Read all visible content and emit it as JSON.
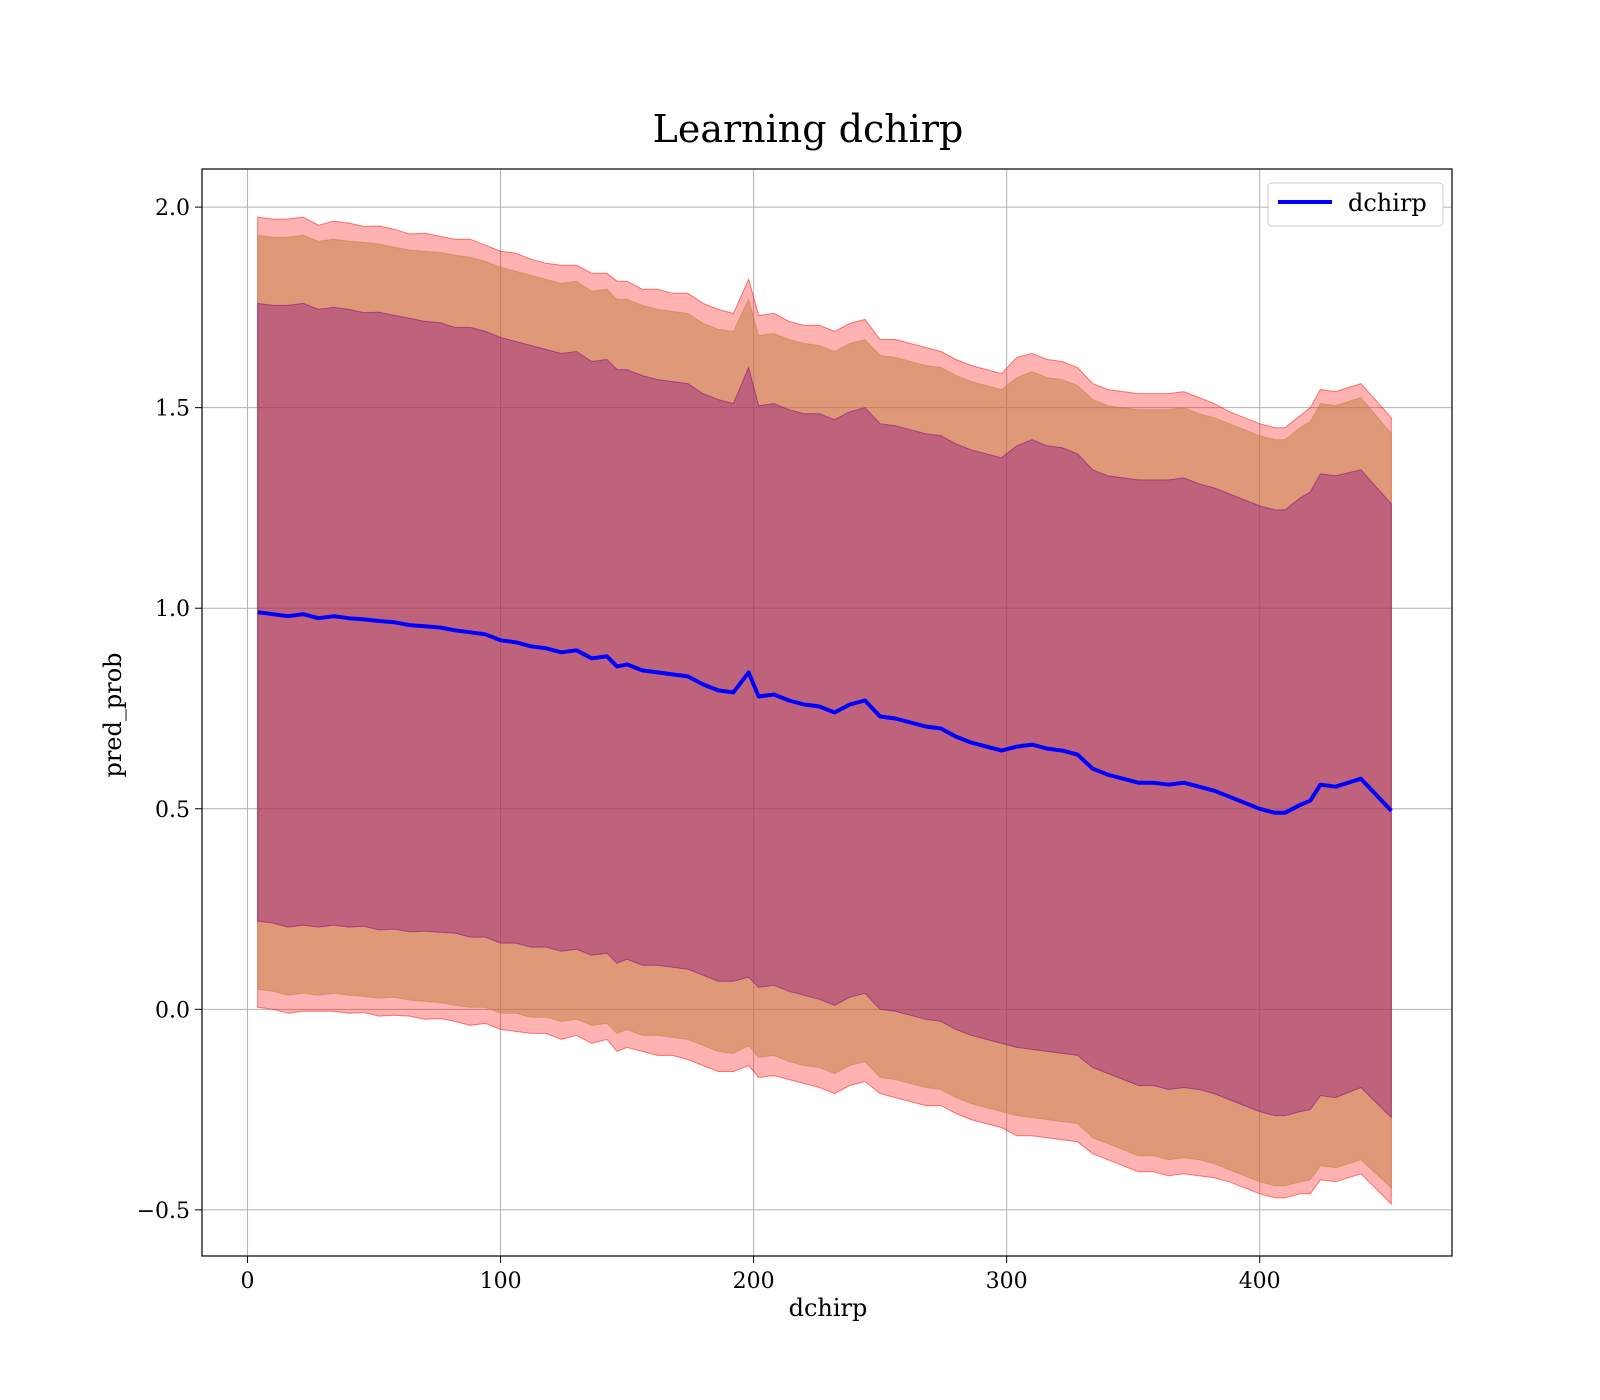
{
  "chart_data": {
    "type": "line",
    "title": "Learning dchirp",
    "xlabel": "dchirp",
    "ylabel": "pred_prob",
    "xlim": [
      -18,
      476
    ],
    "ylim": [
      -0.615,
      2.095
    ],
    "xticks": [
      0,
      100,
      200,
      300,
      400
    ],
    "xtick_labels": [
      "0",
      "100",
      "200",
      "300",
      "400"
    ],
    "yticks": [
      -0.5,
      0.0,
      0.5,
      1.0,
      1.5,
      2.0
    ],
    "ytick_labels": [
      "−0.5",
      "0.0",
      "0.5",
      "1.0",
      "1.5",
      "2.0"
    ],
    "grid": true,
    "legend_position": "top-right",
    "series": [
      {
        "name": "dchirp",
        "color": "#0000ff",
        "x": [
          4,
          10,
          16,
          22,
          28,
          34,
          40,
          46,
          52,
          58,
          64,
          70,
          76,
          82,
          88,
          94,
          100,
          106,
          112,
          118,
          124,
          130,
          136,
          142,
          146,
          150,
          156,
          162,
          168,
          174,
          180,
          186,
          192,
          198,
          202,
          208,
          214,
          220,
          226,
          232,
          238,
          244,
          250,
          256,
          262,
          268,
          274,
          280,
          286,
          292,
          298,
          304,
          310,
          316,
          322,
          328,
          334,
          340,
          346,
          352,
          358,
          364,
          370,
          376,
          382,
          388,
          394,
          400,
          406,
          410,
          416,
          420,
          424,
          430,
          440,
          452
        ],
        "y": [
          0.99,
          0.985,
          0.98,
          0.985,
          0.975,
          0.98,
          0.975,
          0.972,
          0.968,
          0.965,
          0.958,
          0.955,
          0.952,
          0.945,
          0.94,
          0.935,
          0.92,
          0.915,
          0.905,
          0.9,
          0.89,
          0.895,
          0.875,
          0.88,
          0.855,
          0.86,
          0.845,
          0.84,
          0.835,
          0.83,
          0.81,
          0.795,
          0.79,
          0.84,
          0.78,
          0.785,
          0.77,
          0.76,
          0.755,
          0.74,
          0.76,
          0.77,
          0.73,
          0.725,
          0.715,
          0.705,
          0.7,
          0.68,
          0.665,
          0.655,
          0.645,
          0.655,
          0.66,
          0.65,
          0.645,
          0.635,
          0.6,
          0.585,
          0.575,
          0.565,
          0.565,
          0.56,
          0.565,
          0.555,
          0.545,
          0.53,
          0.515,
          0.5,
          0.49,
          0.49,
          0.51,
          0.52,
          0.56,
          0.555,
          0.575,
          0.495
        ]
      }
    ],
    "bands": [
      {
        "fill": "#ff0000",
        "opacity": 0.3,
        "width": [
          0.985,
          0.985,
          0.99,
          0.99,
          0.98,
          0.985,
          0.985,
          0.98,
          0.985,
          0.98,
          0.975,
          0.98,
          0.975,
          0.975,
          0.98,
          0.97,
          0.97,
          0.97,
          0.965,
          0.96,
          0.965,
          0.96,
          0.96,
          0.955,
          0.96,
          0.955,
          0.95,
          0.955,
          0.95,
          0.955,
          0.95,
          0.95,
          0.945,
          0.98,
          0.95,
          0.95,
          0.945,
          0.945,
          0.95,
          0.95,
          0.95,
          0.95,
          0.94,
          0.945,
          0.945,
          0.945,
          0.94,
          0.94,
          0.94,
          0.94,
          0.94,
          0.97,
          0.975,
          0.97,
          0.97,
          0.965,
          0.96,
          0.96,
          0.965,
          0.97,
          0.97,
          0.975,
          0.975,
          0.97,
          0.965,
          0.96,
          0.96,
          0.96,
          0.96,
          0.96,
          0.97,
          0.98,
          0.985,
          0.985,
          0.985,
          0.98
        ]
      },
      {
        "fill": "#bf8040",
        "opacity": 0.5,
        "width": [
          0.94,
          0.94,
          0.945,
          0.945,
          0.94,
          0.94,
          0.94,
          0.94,
          0.94,
          0.935,
          0.935,
          0.935,
          0.935,
          0.935,
          0.935,
          0.93,
          0.93,
          0.925,
          0.925,
          0.92,
          0.92,
          0.92,
          0.915,
          0.915,
          0.915,
          0.91,
          0.91,
          0.905,
          0.905,
          0.905,
          0.9,
          0.9,
          0.9,
          0.93,
          0.9,
          0.9,
          0.9,
          0.9,
          0.9,
          0.9,
          0.9,
          0.9,
          0.9,
          0.9,
          0.9,
          0.9,
          0.9,
          0.9,
          0.9,
          0.9,
          0.9,
          0.92,
          0.93,
          0.925,
          0.925,
          0.92,
          0.92,
          0.92,
          0.925,
          0.93,
          0.93,
          0.935,
          0.935,
          0.93,
          0.93,
          0.93,
          0.93,
          0.93,
          0.93,
          0.93,
          0.94,
          0.945,
          0.95,
          0.95,
          0.95,
          0.94
        ]
      },
      {
        "fill": "#800080",
        "opacity": 0.35,
        "width": [
          0.77,
          0.77,
          0.775,
          0.775,
          0.77,
          0.77,
          0.77,
          0.765,
          0.77,
          0.765,
          0.765,
          0.76,
          0.76,
          0.755,
          0.76,
          0.755,
          0.755,
          0.75,
          0.75,
          0.745,
          0.745,
          0.745,
          0.74,
          0.74,
          0.74,
          0.735,
          0.735,
          0.73,
          0.73,
          0.73,
          0.725,
          0.725,
          0.72,
          0.76,
          0.725,
          0.725,
          0.725,
          0.725,
          0.73,
          0.73,
          0.73,
          0.73,
          0.73,
          0.73,
          0.73,
          0.73,
          0.73,
          0.73,
          0.73,
          0.73,
          0.73,
          0.75,
          0.76,
          0.755,
          0.755,
          0.75,
          0.745,
          0.745,
          0.75,
          0.755,
          0.755,
          0.76,
          0.76,
          0.755,
          0.755,
          0.755,
          0.755,
          0.755,
          0.755,
          0.755,
          0.765,
          0.77,
          0.775,
          0.775,
          0.77,
          0.765
        ]
      }
    ]
  }
}
